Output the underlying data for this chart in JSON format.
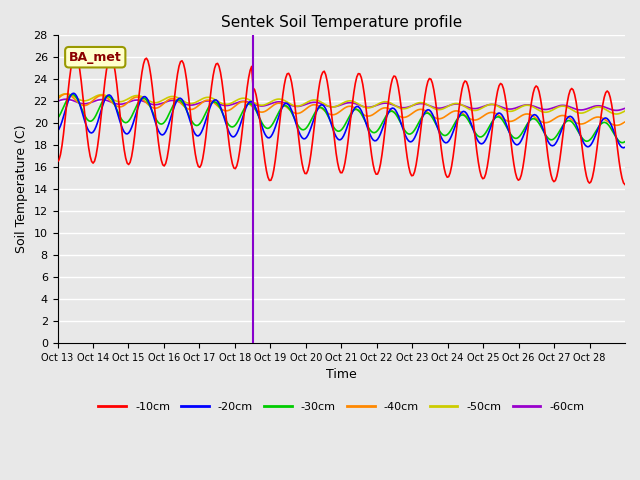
{
  "title": "Sentek Soil Temperature profile",
  "xlabel": "Time",
  "ylabel": "Soil Temperature (C)",
  "ylim": [
    0,
    28
  ],
  "yticks": [
    0,
    2,
    4,
    6,
    8,
    10,
    12,
    14,
    16,
    18,
    20,
    22,
    24,
    26,
    28
  ],
  "xtick_labels": [
    "Oct 13",
    "Oct 14",
    "Oct 15",
    "Oct 16",
    "Oct 17",
    "Oct 18",
    "Oct 19",
    "Oct 20",
    "Oct 21",
    "Oct 22",
    "Oct 23",
    "Oct 24",
    "Oct 25",
    "Oct 26",
    "Oct 27",
    "Oct 28"
  ],
  "n_days": 16,
  "bg_color": "#e8e8e8",
  "plot_bg_color": "#e8e8e8",
  "grid_color": "#ffffff",
  "legend_label": "BA_met",
  "colors": {
    "-10cm": "#ff0000",
    "-20cm": "#0000ff",
    "-30cm": "#00cc00",
    "-40cm": "#ff8800",
    "-50cm": "#cccc00",
    "-60cm": "#9900cc"
  },
  "vertical_line_x": 5.5,
  "vertical_line_color": "#8800cc"
}
